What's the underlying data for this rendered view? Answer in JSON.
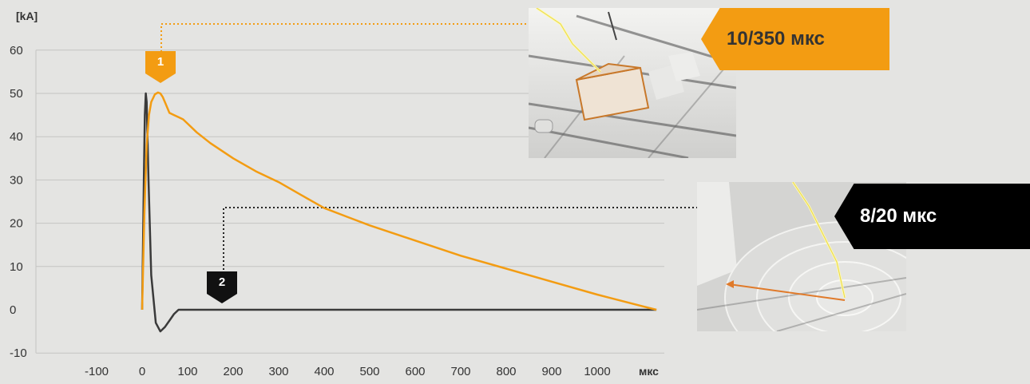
{
  "chart_data": {
    "type": "line",
    "ylabel": "[kA]",
    "xlabel": "мкс",
    "xlim": [
      -130,
      1130
    ],
    "ylim": [
      -10,
      60
    ],
    "y_ticks": [
      60,
      50,
      40,
      30,
      20,
      10,
      0,
      -10
    ],
    "x_ticks": [
      -100,
      0,
      100,
      200,
      300,
      400,
      500,
      600,
      700,
      800,
      900,
      1000
    ],
    "grid": true,
    "series": [
      {
        "id": "1",
        "color": "#f39c12",
        "x": [
          0,
          5,
          10,
          15,
          20,
          28,
          35,
          40,
          45,
          50,
          60,
          70,
          80,
          90,
          100,
          120,
          150,
          200,
          250,
          300,
          350,
          400,
          450,
          500,
          600,
          700,
          800,
          900,
          1000,
          1100,
          1130
        ],
        "y": [
          0,
          22,
          38,
          45,
          48,
          49.8,
          50.2,
          50,
          49.2,
          48,
          45.5,
          45,
          44.5,
          44,
          43,
          41,
          38.5,
          35,
          32,
          29.5,
          26.5,
          23.5,
          21.5,
          19.5,
          16,
          12.5,
          9.5,
          6.5,
          3.5,
          0.8,
          0
        ]
      },
      {
        "id": "2",
        "color": "#3a3a3a",
        "x": [
          0,
          2,
          4,
          6,
          8,
          10,
          14,
          20,
          30,
          40,
          50,
          60,
          70,
          80,
          90,
          100,
          200,
          400,
          600,
          800,
          1000,
          1130
        ],
        "y": [
          0,
          15,
          32,
          45,
          50,
          48,
          30,
          8,
          -3,
          -5,
          -4,
          -2.5,
          -1,
          0,
          0,
          0,
          0,
          0,
          0,
          0,
          0,
          0
        ]
      }
    ]
  },
  "callouts": {
    "c1": {
      "text": "10/350 мкс",
      "color": "#f39c12",
      "text_color": "#333333",
      "marker": "1"
    },
    "c2": {
      "text": "8/20 мкс",
      "color": "#000000",
      "text_color": "#ffffff",
      "marker": "2"
    }
  }
}
